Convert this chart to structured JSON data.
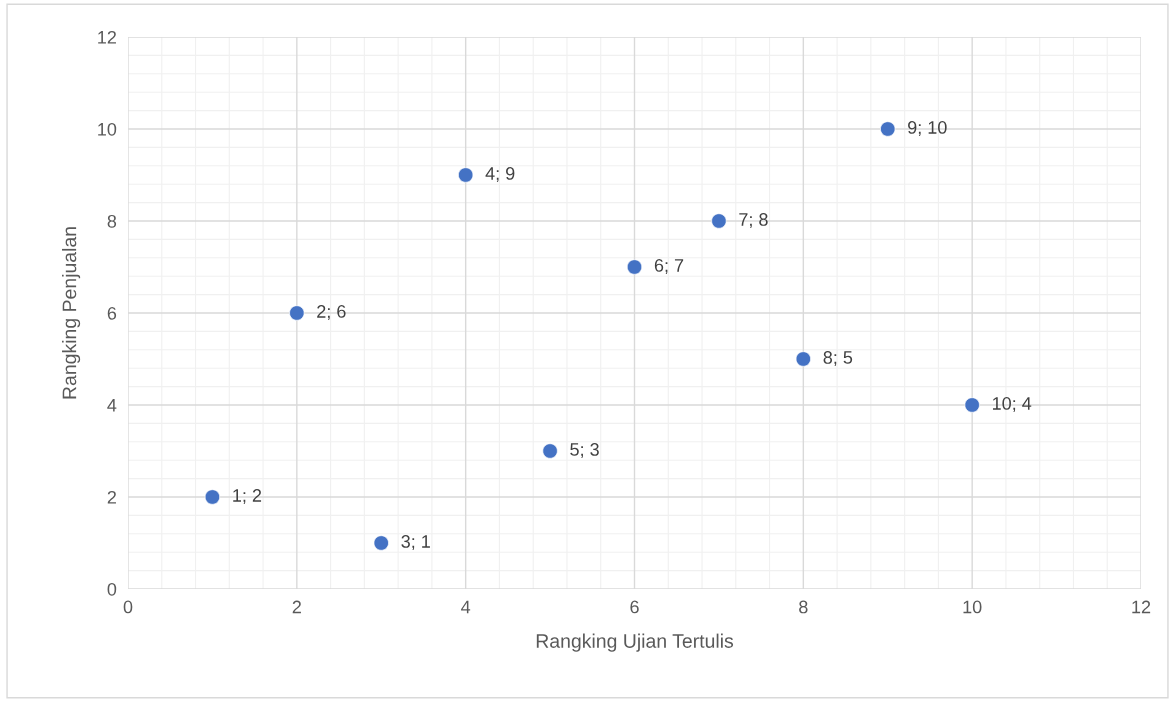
{
  "chart_data": {
    "type": "scatter",
    "xlabel": "Rangking Ujian Tertulis",
    "ylabel": "Rangking Penjualan",
    "x": [
      1,
      2,
      3,
      4,
      5,
      6,
      7,
      8,
      9,
      10
    ],
    "series": [
      {
        "color": "#4472c4",
        "values": [
          2,
          6,
          1,
          9,
          3,
          7,
          8,
          5,
          10,
          4
        ],
        "value_labels": [
          "1; 2",
          "2; 6",
          "3; 1",
          "4; 9",
          "5; 3",
          "6; 7",
          "7; 8",
          "8; 5",
          "9; 10",
          "10; 4"
        ]
      }
    ],
    "xlim": [
      0,
      12
    ],
    "xticks": [
      0,
      2,
      4,
      6,
      8,
      10,
      12
    ],
    "ylim": [
      0,
      12
    ],
    "yticks": [
      0,
      2,
      4,
      6,
      8,
      10,
      12
    ],
    "grid": true,
    "marker": "circle",
    "legend": false
  }
}
